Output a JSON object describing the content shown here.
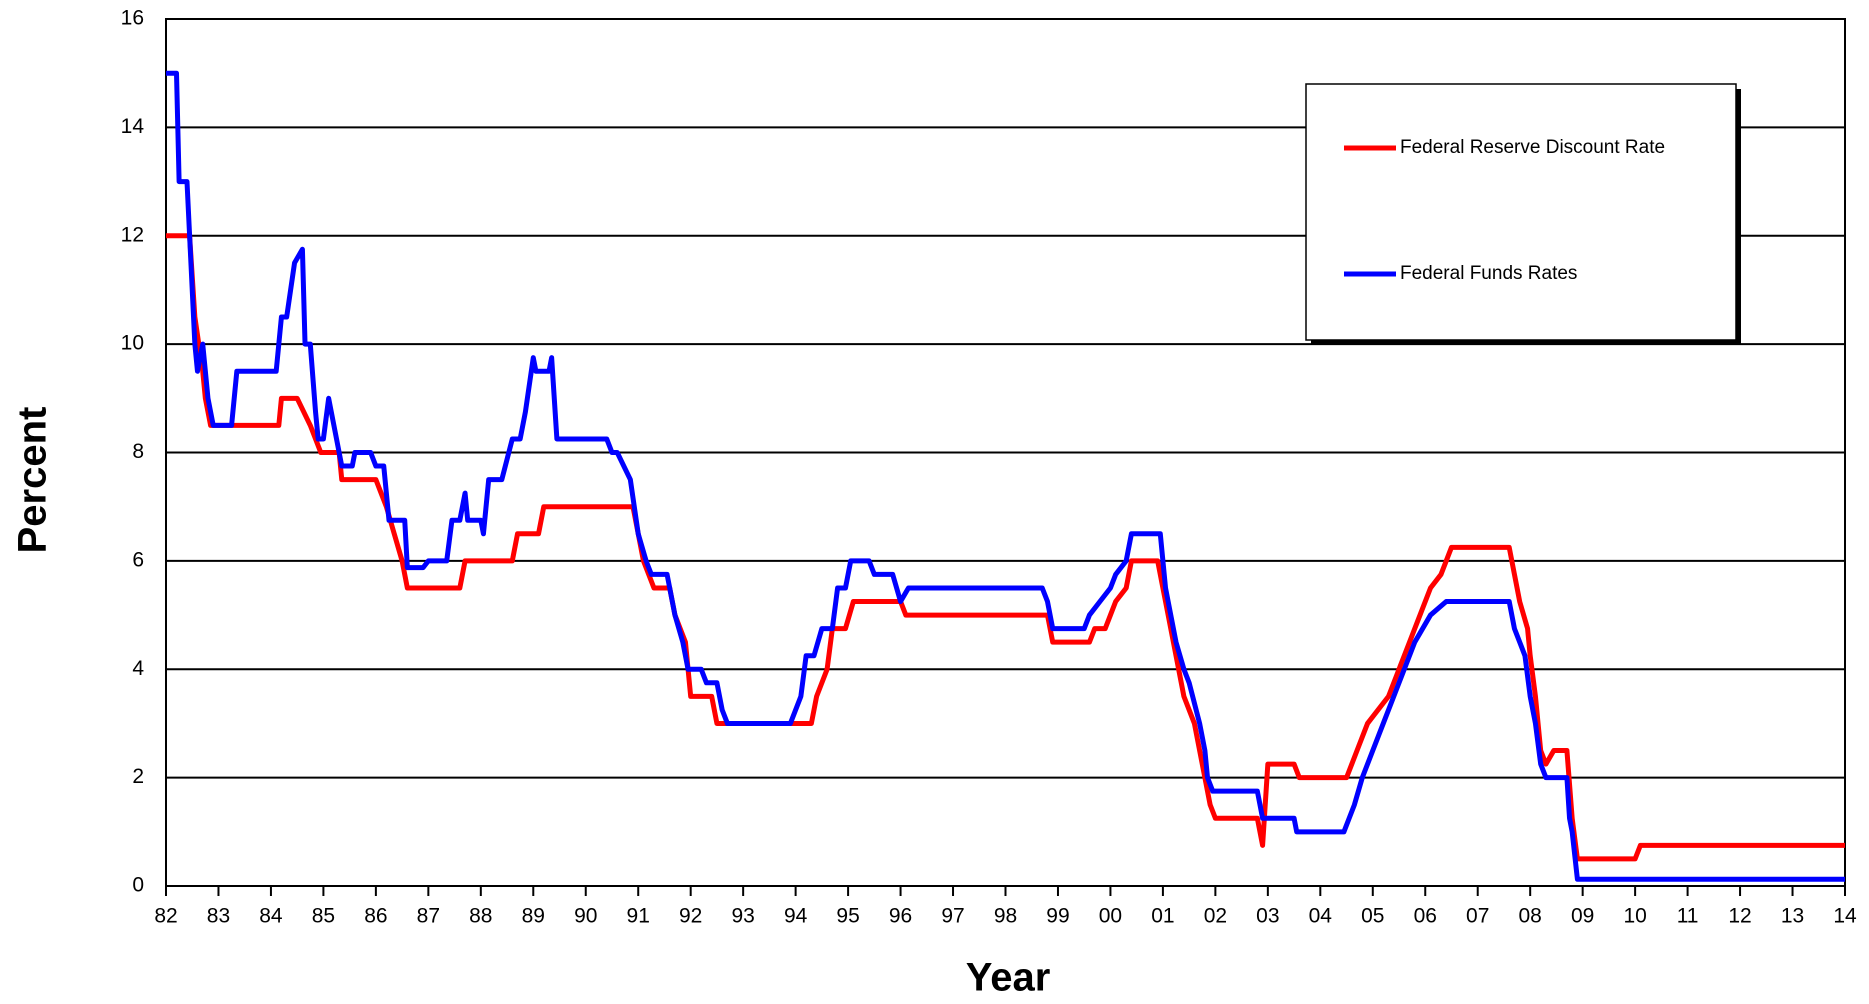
{
  "chart_data": {
    "type": "line",
    "xlabel": "Year",
    "ylabel": "Percent",
    "xlim": [
      1982,
      2014
    ],
    "ylim": [
      0,
      16
    ],
    "yticks": [
      0,
      2,
      4,
      6,
      8,
      10,
      12,
      14,
      16
    ],
    "xticks": [
      {
        "value": 1982,
        "label": "82"
      },
      {
        "value": 1983,
        "label": "83"
      },
      {
        "value": 1984,
        "label": "84"
      },
      {
        "value": 1985,
        "label": "85"
      },
      {
        "value": 1986,
        "label": "86"
      },
      {
        "value": 1987,
        "label": "87"
      },
      {
        "value": 1988,
        "label": "88"
      },
      {
        "value": 1989,
        "label": "89"
      },
      {
        "value": 1990,
        "label": "90"
      },
      {
        "value": 1991,
        "label": "91"
      },
      {
        "value": 1992,
        "label": "92"
      },
      {
        "value": 1993,
        "label": "93"
      },
      {
        "value": 1994,
        "label": "94"
      },
      {
        "value": 1995,
        "label": "95"
      },
      {
        "value": 1996,
        "label": "96"
      },
      {
        "value": 1997,
        "label": "97"
      },
      {
        "value": 1998,
        "label": "98"
      },
      {
        "value": 1999,
        "label": "99"
      },
      {
        "value": 2000,
        "label": "00"
      },
      {
        "value": 2001,
        "label": "01"
      },
      {
        "value": 2002,
        "label": "02"
      },
      {
        "value": 2003,
        "label": "03"
      },
      {
        "value": 2004,
        "label": "04"
      },
      {
        "value": 2005,
        "label": "05"
      },
      {
        "value": 2006,
        "label": "06"
      },
      {
        "value": 2007,
        "label": "07"
      },
      {
        "value": 2008,
        "label": "08"
      },
      {
        "value": 2009,
        "label": "09"
      },
      {
        "value": 2010,
        "label": "10"
      },
      {
        "value": 2011,
        "label": "11"
      },
      {
        "value": 2012,
        "label": "12"
      },
      {
        "value": 2013,
        "label": "13"
      },
      {
        "value": 2014,
        "label": "14"
      }
    ],
    "grid": true,
    "series": [
      {
        "name": "Federal Reserve Discount Rate",
        "color": "#ff0000",
        "x": [
          1982.0,
          1982.45,
          1982.55,
          1982.7,
          1982.75,
          1982.85,
          1984.15,
          1984.2,
          1984.5,
          1984.75,
          1984.95,
          1985.3,
          1985.35,
          1986.0,
          1986.2,
          1986.35,
          1986.5,
          1986.6,
          1987.6,
          1987.7,
          1988.6,
          1988.7,
          1989.1,
          1989.2,
          1990.9,
          1991.0,
          1991.1,
          1991.3,
          1991.6,
          1991.7,
          1991.9,
          1992.0,
          1992.4,
          1992.5,
          1994.3,
          1994.4,
          1994.6,
          1994.7,
          1994.95,
          1995.1,
          1996.0,
          1996.1,
          1998.8,
          1998.9,
          1999.6,
          1999.7,
          1999.9,
          2000.0,
          2000.1,
          2000.3,
          2000.4,
          2000.9,
          2001.0,
          2001.1,
          2001.2,
          2001.3,
          2001.4,
          2001.6,
          2001.8,
          2001.9,
          2002.0,
          2002.8,
          2002.9,
          2003.0,
          2003.5,
          2003.6,
          2004.5,
          2004.6,
          2004.7,
          2004.9,
          2005.1,
          2005.3,
          2005.5,
          2005.7,
          2005.9,
          2006.1,
          2006.3,
          2006.5,
          2007.6,
          2007.7,
          2007.8,
          2007.95,
          2008.0,
          2008.1,
          2008.2,
          2008.3,
          2008.45,
          2008.7,
          2008.8,
          2008.9,
          2010.0,
          2010.1,
          2014.0
        ],
        "values": [
          12,
          12,
          10.5,
          9.5,
          9,
          8.5,
          8.5,
          9,
          9,
          8.5,
          8,
          8,
          7.5,
          7.5,
          7,
          6.5,
          6,
          5.5,
          5.5,
          6,
          6,
          6.5,
          6.5,
          7,
          7,
          6.5,
          6,
          5.5,
          5.5,
          5,
          4.5,
          3.5,
          3.5,
          3,
          3,
          3.5,
          4,
          4.75,
          4.75,
          5.25,
          5.25,
          5,
          5,
          4.5,
          4.5,
          4.75,
          4.75,
          5,
          5.25,
          5.5,
          6,
          6,
          5.5,
          5,
          4.5,
          4,
          3.5,
          3,
          2,
          1.5,
          1.25,
          1.25,
          0.75,
          2.25,
          2.25,
          2,
          2,
          2.25,
          2.5,
          3,
          3.25,
          3.5,
          4,
          4.5,
          5,
          5.5,
          5.75,
          6.25,
          6.25,
          5.75,
          5.25,
          4.75,
          4.25,
          3.5,
          2.5,
          2.25,
          2.5,
          2.5,
          1.25,
          0.5,
          0.5,
          0.75,
          0.75
        ]
      },
      {
        "name": "Federal Funds Rates",
        "color": "#0000ff",
        "x": [
          1982.0,
          1982.2,
          1982.25,
          1982.4,
          1982.55,
          1982.6,
          1982.7,
          1982.8,
          1982.9,
          1983.25,
          1983.35,
          1984.1,
          1984.2,
          1984.3,
          1984.45,
          1984.6,
          1984.65,
          1984.75,
          1984.85,
          1984.9,
          1985.0,
          1985.1,
          1985.25,
          1985.35,
          1985.55,
          1985.6,
          1985.9,
          1986.0,
          1986.15,
          1986.25,
          1986.55,
          1986.6,
          1986.9,
          1987.0,
          1987.35,
          1987.45,
          1987.6,
          1987.7,
          1987.75,
          1988.0,
          1988.05,
          1988.15,
          1988.4,
          1988.6,
          1988.75,
          1988.85,
          1989.0,
          1989.05,
          1989.3,
          1989.35,
          1989.45,
          1990.4,
          1990.5,
          1990.6,
          1990.85,
          1991.0,
          1991.15,
          1991.25,
          1991.55,
          1991.7,
          1991.85,
          1991.95,
          1992.2,
          1992.3,
          1992.5,
          1992.6,
          1992.7,
          1993.9,
          1994.1,
          1994.2,
          1994.35,
          1994.5,
          1994.7,
          1994.8,
          1994.95,
          1995.05,
          1995.4,
          1995.5,
          1995.85,
          1996.0,
          1996.15,
          1998.7,
          1998.8,
          1998.9,
          1999.5,
          1999.6,
          1999.8,
          2000.0,
          2000.1,
          2000.3,
          2000.4,
          2000.95,
          2001.0,
          2001.05,
          2001.15,
          2001.25,
          2001.4,
          2001.5,
          2001.7,
          2001.8,
          2001.85,
          2001.95,
          2002.8,
          2002.9,
          2003.5,
          2003.55,
          2004.45,
          2004.55,
          2004.65,
          2004.8,
          2005.0,
          2005.2,
          2005.4,
          2005.6,
          2005.8,
          2006.1,
          2006.4,
          2007.6,
          2007.7,
          2007.8,
          2007.9,
          2008.0,
          2008.1,
          2008.2,
          2008.3,
          2008.7,
          2008.75,
          2008.8,
          2008.9,
          2014.0
        ],
        "values": [
          15,
          15,
          13,
          13,
          10,
          9.5,
          10,
          9,
          8.5,
          8.5,
          9.5,
          9.5,
          10.5,
          10.5,
          11.5,
          11.75,
          10,
          10,
          8.75,
          8.25,
          8.25,
          9,
          8.25,
          7.75,
          7.75,
          8,
          8,
          7.75,
          7.75,
          6.75,
          6.75,
          5.875,
          5.875,
          6,
          6,
          6.75,
          6.75,
          7.25,
          6.75,
          6.75,
          6.5,
          7.5,
          7.5,
          8.25,
          8.25,
          8.75,
          9.75,
          9.5,
          9.5,
          9.75,
          8.25,
          8.25,
          8,
          8,
          7.5,
          6.5,
          6,
          5.75,
          5.75,
          5,
          4.5,
          4,
          4,
          3.75,
          3.75,
          3.25,
          3,
          3,
          3.5,
          4.25,
          4.25,
          4.75,
          4.75,
          5.5,
          5.5,
          6,
          6,
          5.75,
          5.75,
          5.25,
          5.5,
          5.5,
          5.25,
          4.75,
          4.75,
          5,
          5.25,
          5.5,
          5.75,
          6,
          6.5,
          6.5,
          6,
          5.5,
          5,
          4.5,
          4,
          3.75,
          3,
          2.5,
          2,
          1.75,
          1.75,
          1.25,
          1.25,
          1,
          1,
          1.25,
          1.5,
          2,
          2.5,
          3,
          3.5,
          4,
          4.5,
          5,
          5.25,
          5.25,
          4.75,
          4.5,
          4.25,
          3.5,
          3,
          2.25,
          2,
          2,
          1.25,
          1,
          0.125,
          0.125
        ]
      }
    ]
  }
}
